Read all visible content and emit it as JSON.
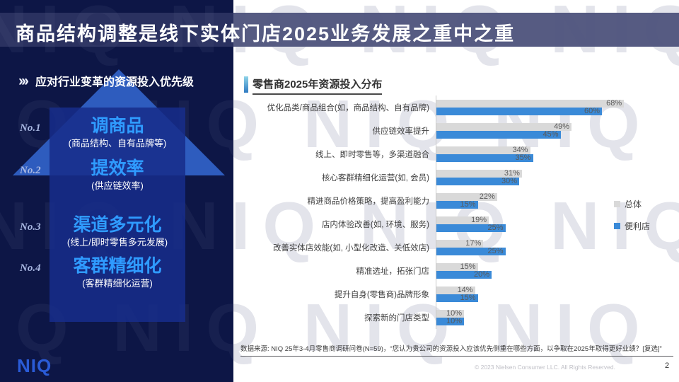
{
  "title": "商品结构调整是线下实体门店2025业务发展之重中之重",
  "watermark": "NIQ",
  "sidebar": {
    "header": "应对行业变革的资源投入优先级",
    "priorities": [
      {
        "rank": "No.1",
        "title": "调商品",
        "subtitle": "(商品结构、自有品牌等)"
      },
      {
        "rank": "No.2",
        "title": "提效率",
        "subtitle": "(供应链效率)"
      },
      {
        "rank": "No.3",
        "title": "渠道多元化",
        "subtitle": "(线上/即时零售多元发展)"
      },
      {
        "rank": "No.4",
        "title": "客群精细化",
        "subtitle": "(客群精细化运营)"
      }
    ],
    "logo": "NIQ"
  },
  "chart_data": {
    "type": "bar",
    "orientation": "horizontal",
    "title": "零售商2025年资源投入分布",
    "categories": [
      "优化品类/商品组合(如，商品结构、自有品牌)",
      "供应链效率提升",
      "线上、即时零售等，多渠道融合",
      "核心客群精细化运营(如, 会员)",
      "精进商品价格策略，提高盈利能力",
      "店内体验改善(如, 环境、服务)",
      "改善实体店效能(如, 小型化改造、关低效店)",
      "精准选址，拓张门店",
      "提升自身(零售商)品牌形象",
      "探索新的门店类型"
    ],
    "series": [
      {
        "name": "总体",
        "color": "#d9d9d9",
        "values": [
          68,
          49,
          34,
          31,
          22,
          19,
          17,
          15,
          14,
          10
        ]
      },
      {
        "name": "便利店",
        "color": "#3a8ad8",
        "values": [
          60,
          45,
          35,
          30,
          15,
          25,
          25,
          20,
          15,
          10
        ]
      }
    ],
    "value_suffix": "%",
    "xlim": [
      0,
      85
    ],
    "grid": false,
    "legend_position": "right",
    "value_labels": "inside-end"
  },
  "footer": {
    "source": "数据来源: NIQ 25年3-4月零售商调研问卷(N=59)，“您认为贵公司的资源投入应该优先侧重在哪些方面，以争取在2025年取得更好业绩？[复选]”",
    "copyright": "© 2023 Nielsen Consumer LLC. All Rights Reserved.",
    "page": "2"
  },
  "colors": {
    "background_navy": "#0d1646",
    "titlebar_overlay": "#61678b",
    "arrow_triangle": "#2e5cbe",
    "arrow_column": "#17308c",
    "priority_title_blue": "#2f9bff",
    "niq_logo_blue": "#2a5bd7"
  }
}
